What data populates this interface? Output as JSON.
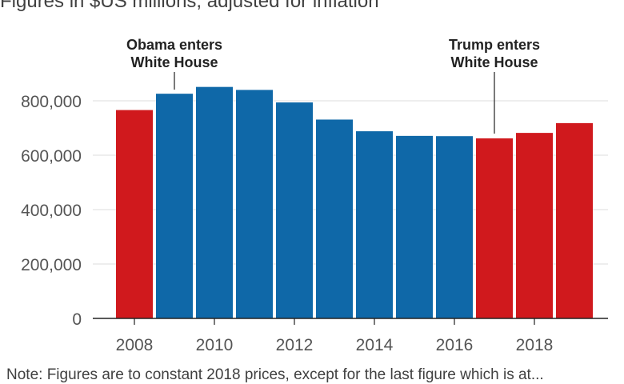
{
  "chart_data": {
    "type": "bar",
    "subtitle": "Figures in $US millions, adjusted for inflation",
    "categories": [
      "2008",
      "2009",
      "2010",
      "2011",
      "2012",
      "2013",
      "2014",
      "2015",
      "2016",
      "2017",
      "2018",
      "2019"
    ],
    "values": [
      766000,
      826000,
      851000,
      840000,
      794000,
      731000,
      688000,
      671000,
      670000,
      662000,
      682000,
      718000
    ],
    "parties": [
      "republican",
      "democrat",
      "democrat",
      "democrat",
      "democrat",
      "democrat",
      "democrat",
      "democrat",
      "democrat",
      "republican",
      "republican",
      "republican"
    ],
    "colors": {
      "republican": "#d0191d",
      "democrat": "#0f68a8",
      "gridline": "#dddddd",
      "axis": "#222222"
    },
    "x_tick_labels": [
      "2008",
      "2010",
      "2012",
      "2014",
      "2016",
      "2018"
    ],
    "y_ticks": [
      0,
      200000,
      400000,
      600000,
      800000
    ],
    "y_tick_labels": [
      "0",
      "200,000",
      "400,000",
      "600,000",
      "800,000"
    ],
    "ylim": [
      0,
      900000
    ],
    "grid": true,
    "annotations": [
      {
        "lines": [
          "Obama enters",
          "White House"
        ],
        "year": "2009"
      },
      {
        "lines": [
          "Trump enters",
          "White House"
        ],
        "year": "2017"
      }
    ],
    "note": "Note: Figures are to constant 2018 prices, except for the last figure which is at..."
  }
}
